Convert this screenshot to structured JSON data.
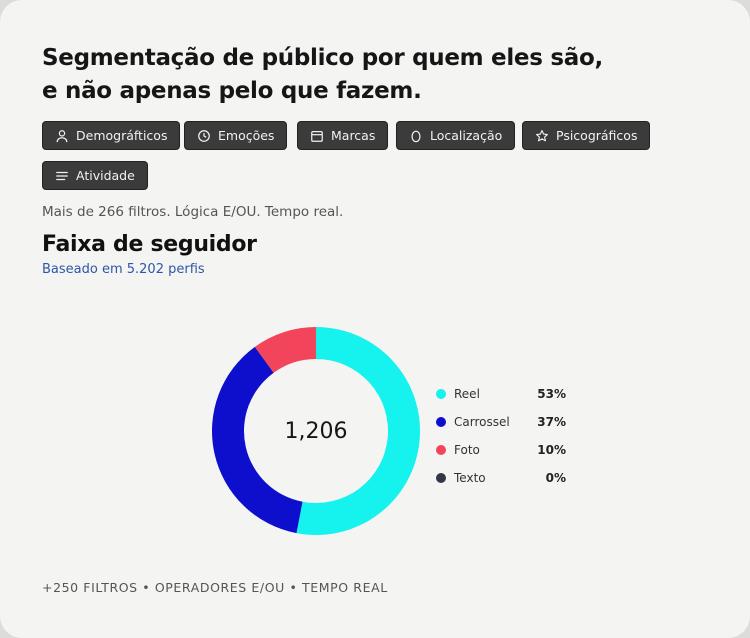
{
  "headline": {
    "line1": "Segmentação de público por quem eles são,",
    "line2": "e não apenas pelo que fazem."
  },
  "filters": [
    {
      "label": "Demográfticos",
      "icon": "person-icon"
    },
    {
      "label": "Emoções",
      "icon": "clock-icon"
    },
    {
      "label": "Marcas",
      "icon": "calendar-icon"
    },
    {
      "label": "Localização",
      "icon": "location-pin-icon"
    },
    {
      "label": "Psicográficos",
      "icon": "star-icon"
    },
    {
      "label": "Atividade",
      "icon": "menu-lines-icon"
    }
  ],
  "meta_text": "Mais de 266 filtros. Lógica E/OU. Tempo real.",
  "section": {
    "title": "Faixa de seguidor",
    "subtitle": "Baseado em 5.202 perfis"
  },
  "chart_data": {
    "type": "pie",
    "center_label": "1,206",
    "series": [
      {
        "name": "Reel",
        "value": 53,
        "label": "53%",
        "color": "#16f2ee"
      },
      {
        "name": "Carrossel",
        "value": 37,
        "label": "37%",
        "color": "#0d0fcc"
      },
      {
        "name": "Foto",
        "value": 10,
        "label": "10%",
        "color": "#f2445a"
      },
      {
        "name": "Texto",
        "value": 0,
        "label": "0%",
        "color": "#323646"
      }
    ]
  },
  "footer": "+250 FILTROS • OPERADORES E/OU • TEMPO REAL"
}
